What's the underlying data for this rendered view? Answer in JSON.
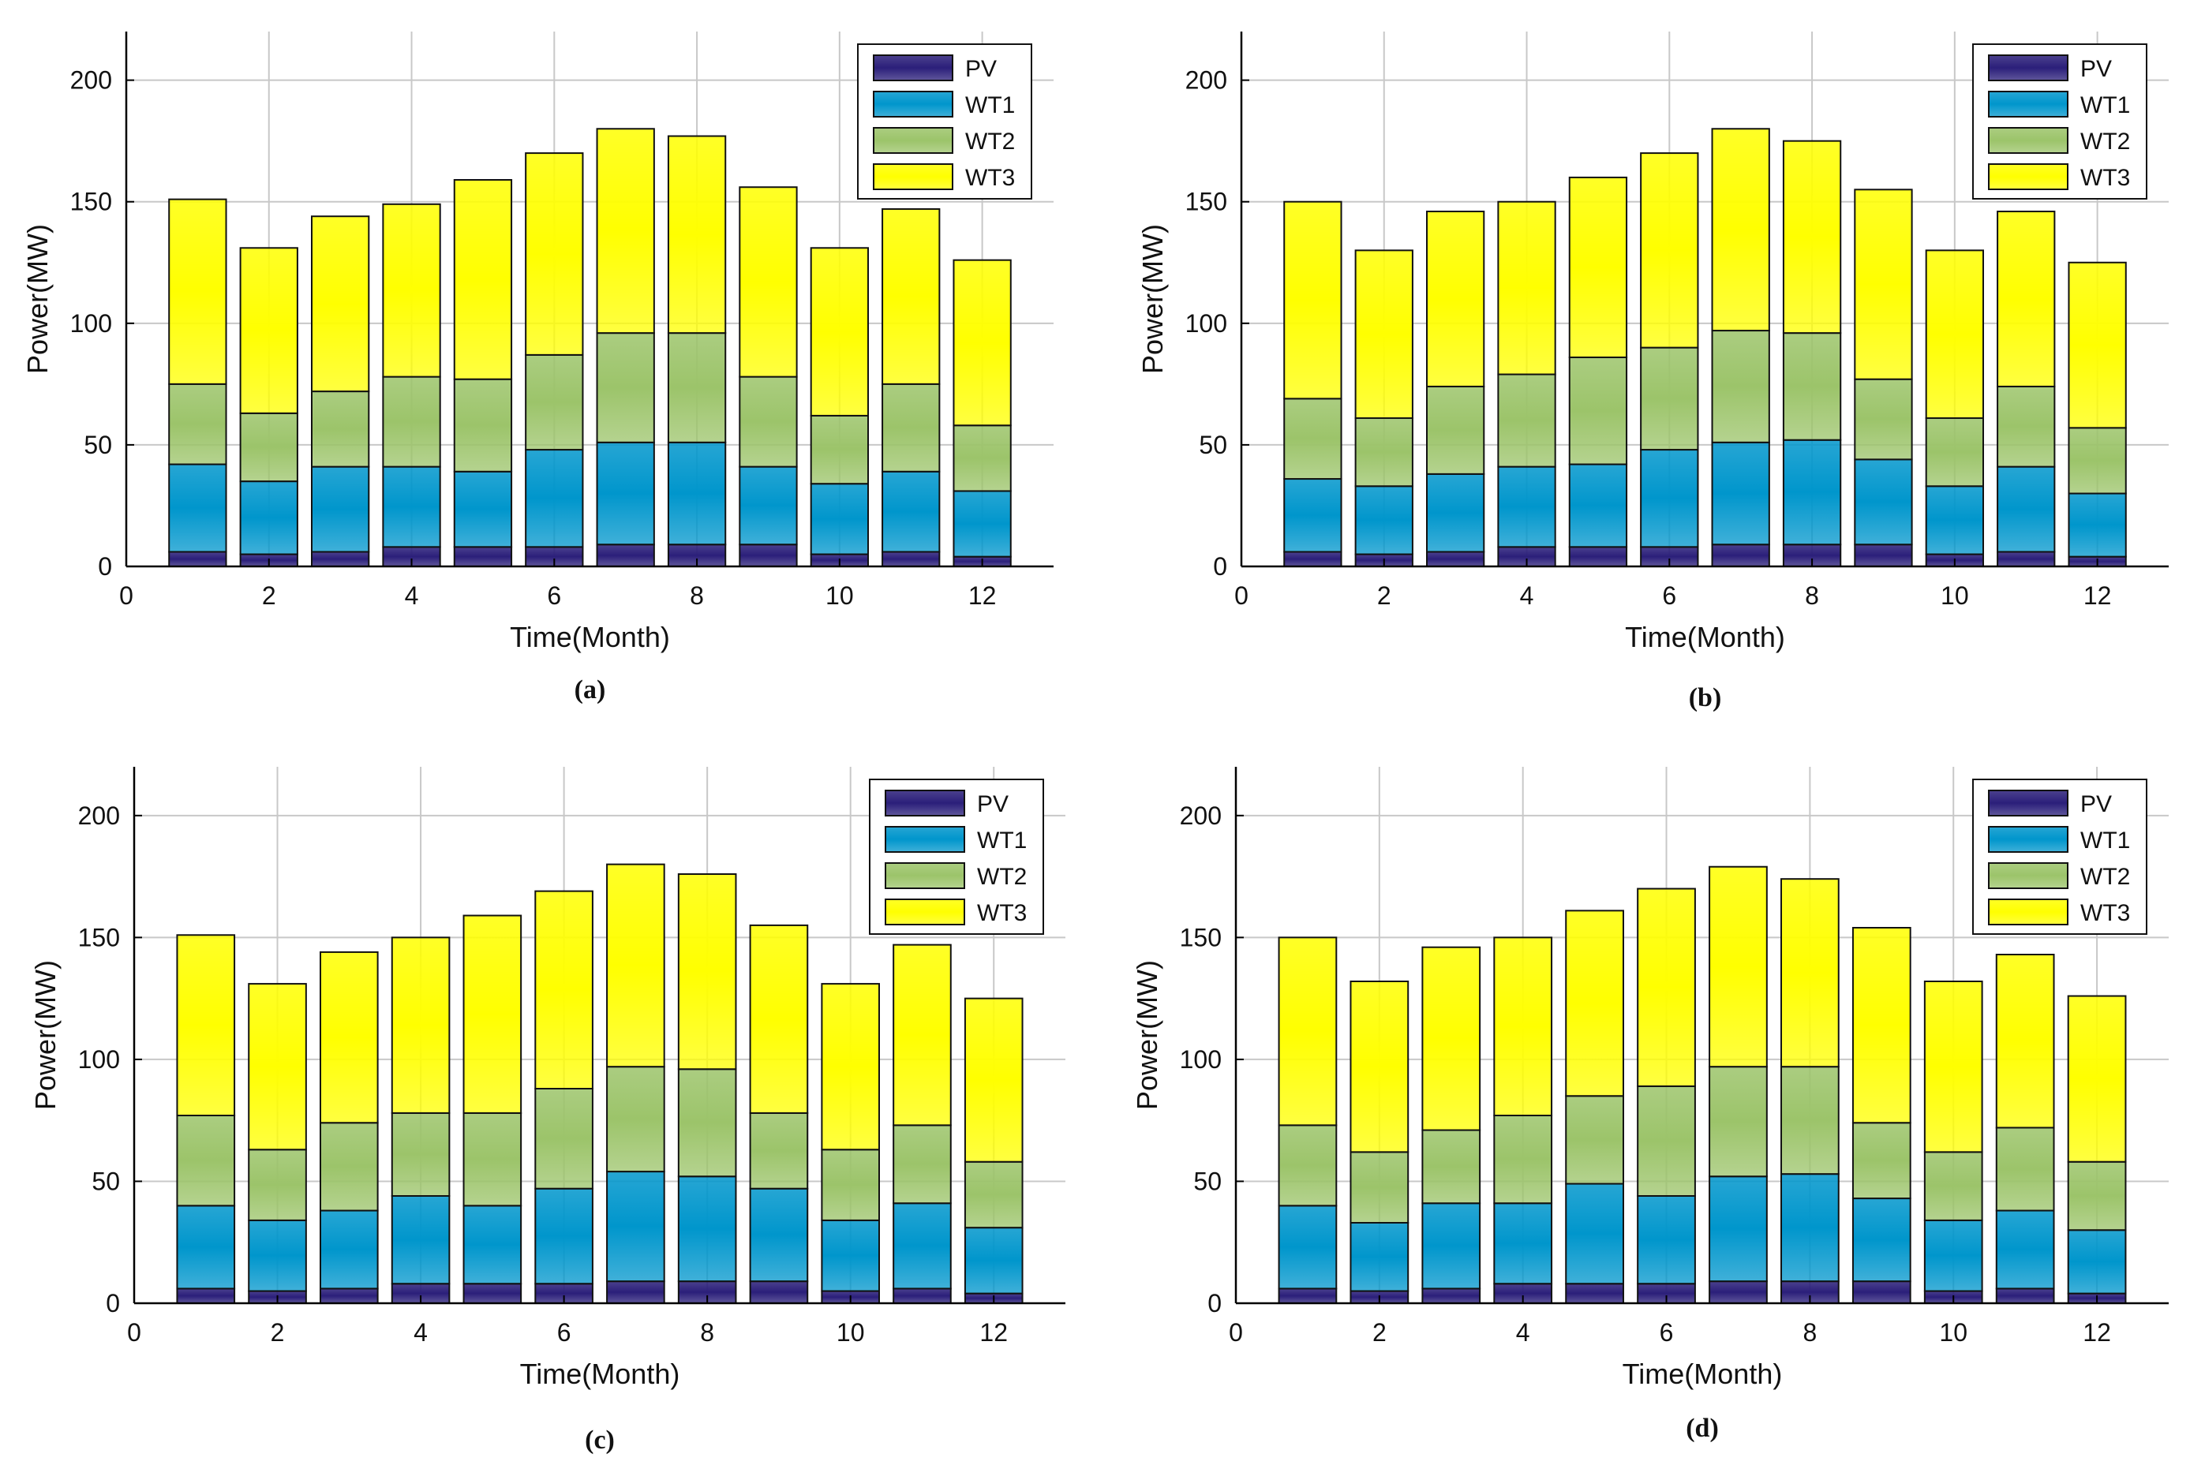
{
  "colors": {
    "PV": "#2b1f7a",
    "WT1": "#0096cc",
    "WT2": "#9cc46a",
    "WT3": "#ffff00",
    "grid": "#c8c8c8",
    "axis": "#000000"
  },
  "chart_data": [
    {
      "type": "bar",
      "stacked": true,
      "caption": "(a)",
      "xlabel": "Time(Month)",
      "ylabel": "Power(MW)",
      "xlim": [
        0,
        13
      ],
      "ylim": [
        0,
        220
      ],
      "xticks": [
        "0",
        "2",
        "4",
        "6",
        "8",
        "10",
        "12"
      ],
      "yticks": [
        "0",
        "50",
        "100",
        "150",
        "200"
      ],
      "grid": true,
      "legend_position": "top-right",
      "categories": [
        1,
        2,
        3,
        4,
        5,
        6,
        7,
        8,
        9,
        10,
        11,
        12
      ],
      "series": [
        {
          "name": "PV",
          "values": [
            6,
            5,
            6,
            8,
            8,
            8,
            9,
            9,
            9,
            5,
            6,
            4
          ]
        },
        {
          "name": "WT1",
          "values": [
            36,
            30,
            35,
            33,
            31,
            40,
            42,
            42,
            32,
            29,
            33,
            27
          ]
        },
        {
          "name": "WT2",
          "values": [
            33,
            28,
            31,
            37,
            38,
            39,
            45,
            45,
            37,
            28,
            36,
            27
          ]
        },
        {
          "name": "WT3",
          "values": [
            76,
            68,
            72,
            71,
            82,
            83,
            84,
            81,
            78,
            69,
            72,
            68
          ]
        }
      ]
    },
    {
      "type": "bar",
      "stacked": true,
      "caption": "(b)",
      "xlabel": "Time(Month)",
      "ylabel": "Power(MW)",
      "xlim": [
        0,
        13
      ],
      "ylim": [
        0,
        220
      ],
      "xticks": [
        "0",
        "2",
        "4",
        "6",
        "8",
        "10",
        "12"
      ],
      "yticks": [
        "0",
        "50",
        "100",
        "150",
        "200"
      ],
      "grid": true,
      "legend_position": "top-right",
      "categories": [
        1,
        2,
        3,
        4,
        5,
        6,
        7,
        8,
        9,
        10,
        11,
        12
      ],
      "series": [
        {
          "name": "PV",
          "values": [
            6,
            5,
            6,
            8,
            8,
            8,
            9,
            9,
            9,
            5,
            6,
            4
          ]
        },
        {
          "name": "WT1",
          "values": [
            30,
            28,
            32,
            33,
            34,
            40,
            42,
            43,
            35,
            28,
            35,
            26
          ]
        },
        {
          "name": "WT2",
          "values": [
            33,
            28,
            36,
            38,
            44,
            42,
            46,
            44,
            33,
            28,
            33,
            27
          ]
        },
        {
          "name": "WT3",
          "values": [
            81,
            69,
            72,
            71,
            74,
            80,
            83,
            79,
            78,
            69,
            72,
            68
          ]
        }
      ]
    },
    {
      "type": "bar",
      "stacked": true,
      "caption": "(c)",
      "xlabel": "Time(Month)",
      "ylabel": "Power(MW)",
      "xlim": [
        0,
        13
      ],
      "ylim": [
        0,
        220
      ],
      "xticks": [
        "0",
        "2",
        "4",
        "6",
        "8",
        "10",
        "12"
      ],
      "yticks": [
        "0",
        "50",
        "100",
        "150",
        "200"
      ],
      "grid": true,
      "legend_position": "top-right",
      "categories": [
        1,
        2,
        3,
        4,
        5,
        6,
        7,
        8,
        9,
        10,
        11,
        12
      ],
      "series": [
        {
          "name": "PV",
          "values": [
            6,
            5,
            6,
            8,
            8,
            8,
            9,
            9,
            9,
            5,
            6,
            4
          ]
        },
        {
          "name": "WT1",
          "values": [
            34,
            29,
            32,
            36,
            32,
            39,
            45,
            43,
            38,
            29,
            35,
            27
          ]
        },
        {
          "name": "WT2",
          "values": [
            37,
            29,
            36,
            34,
            38,
            41,
            43,
            44,
            31,
            29,
            32,
            27
          ]
        },
        {
          "name": "WT3",
          "values": [
            74,
            68,
            70,
            72,
            81,
            81,
            83,
            80,
            77,
            68,
            74,
            67
          ]
        }
      ]
    },
    {
      "type": "bar",
      "stacked": true,
      "caption": "(d)",
      "xlabel": "Time(Month)",
      "ylabel": "Power(MW)",
      "xlim": [
        0,
        13
      ],
      "ylim": [
        0,
        220
      ],
      "xticks": [
        "0",
        "2",
        "4",
        "6",
        "8",
        "10",
        "12"
      ],
      "yticks": [
        "0",
        "50",
        "100",
        "150",
        "200"
      ],
      "grid": true,
      "legend_position": "top-right",
      "categories": [
        1,
        2,
        3,
        4,
        5,
        6,
        7,
        8,
        9,
        10,
        11,
        12
      ],
      "series": [
        {
          "name": "PV",
          "values": [
            6,
            5,
            6,
            8,
            8,
            8,
            9,
            9,
            9,
            5,
            6,
            4
          ]
        },
        {
          "name": "WT1",
          "values": [
            34,
            28,
            35,
            33,
            41,
            36,
            43,
            44,
            34,
            29,
            32,
            26
          ]
        },
        {
          "name": "WT2",
          "values": [
            33,
            29,
            30,
            36,
            36,
            45,
            45,
            44,
            31,
            28,
            34,
            28
          ]
        },
        {
          "name": "WT3",
          "values": [
            77,
            70,
            75,
            73,
            76,
            81,
            82,
            77,
            80,
            70,
            71,
            68
          ]
        }
      ]
    }
  ]
}
